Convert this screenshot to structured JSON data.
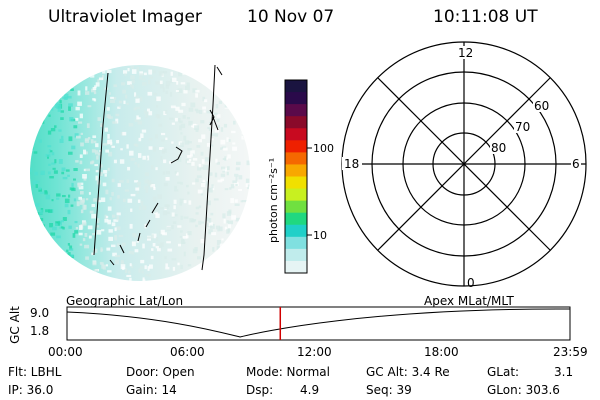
{
  "header": {
    "title": "Ultraviolet Imager",
    "date": "10 Nov 07",
    "time": "10:11:08 UT"
  },
  "colorbar": {
    "unit_label": "photon cm⁻²s⁻¹",
    "ticks": [
      "100",
      "10"
    ],
    "colors": [
      "#1a1440",
      "#2a0a4a",
      "#5a0a4a",
      "#8a0a2a",
      "#c80a20",
      "#ee2000",
      "#f56800",
      "#f8a800",
      "#f0e000",
      "#c8f020",
      "#70e040",
      "#20d880",
      "#20d0c8",
      "#80e0e0",
      "#c0ecec",
      "#e6f4f4"
    ]
  },
  "polar_plot": {
    "mlt_labels": [
      "12",
      "18",
      "6",
      "0"
    ],
    "lat_labels": [
      "60",
      "70",
      "80"
    ]
  },
  "timeline": {
    "left_title": "Geographic Lat/Lon",
    "right_title": "Apex  MLat/MLT",
    "y_axis_label": "GC Alt",
    "y_ticks": [
      "9.0",
      "1.8"
    ],
    "x_ticks": [
      "00:00",
      "06:00",
      "12:00",
      "18:00",
      "23:59"
    ],
    "current_time_fraction": 0.424,
    "marker_color": "#d00000"
  },
  "info": {
    "filter": "Flt: LBHL",
    "ip": "IP: 36.0",
    "door": "Door: Open",
    "gain": "Gain: 14",
    "mode": "Mode: Normal",
    "dsp_label": "Dsp:",
    "dsp_value": "4.9",
    "gc_alt": "GC Alt: 3.4 Re",
    "seq": "Seq: 39",
    "glat_label": "GLat:",
    "glat_value": "3.1",
    "glon": "GLon: 303.6"
  }
}
